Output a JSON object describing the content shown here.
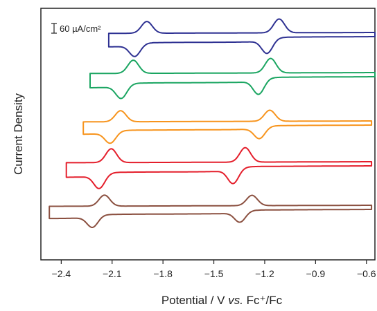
{
  "chart_data": {
    "type": "line",
    "title": "",
    "xlabel": "Potential / V vs. Fc⁺/Fc",
    "xlabel_parts": {
      "prefix": "Potential / V ",
      "italic": "vs.",
      "suffix": " Fc⁺/Fc"
    },
    "ylabel": "Current Density",
    "xlim": [
      -2.52,
      -0.55
    ],
    "x_ticks": [
      -2.4,
      -2.1,
      -1.8,
      -1.5,
      -1.2,
      -0.9,
      -0.6
    ],
    "x_tick_labels": [
      "−2.4",
      "−2.1",
      "−1.8",
      "−1.5",
      "−1.2",
      "−0.9",
      "−0.6"
    ],
    "y_ticks_visible": false,
    "scale_bar_label": "60 µA/cm²",
    "scale_bar_value": 60,
    "grid": false,
    "series": [
      {
        "color": "#2e3192",
        "x_start": -2.12,
        "x_end": -0.55,
        "e1": -1.93,
        "e2": -1.15,
        "amp1": 0.85,
        "amp2": 1.0,
        "sep": 0.07
      },
      {
        "color": "#1aa561",
        "x_start": -2.23,
        "x_end": -0.55,
        "e1": -2.01,
        "e2": -1.2,
        "amp1": 0.95,
        "amp2": 1.05,
        "sep": 0.07
      },
      {
        "color": "#f7941d",
        "x_start": -2.27,
        "x_end": -0.57,
        "e1": -2.08,
        "e2": -1.2,
        "amp1": 0.8,
        "amp2": 0.8,
        "sep": 0.06
      },
      {
        "color": "#e41e2b",
        "x_start": -2.37,
        "x_end": -0.57,
        "e1": -2.14,
        "e2": -1.35,
        "amp1": 1.0,
        "amp2": 1.05,
        "sep": 0.07
      },
      {
        "color": "#8b5040",
        "x_start": -2.47,
        "x_end": -0.57,
        "e1": -2.18,
        "e2": -1.31,
        "amp1": 0.8,
        "amp2": 0.75,
        "sep": 0.07
      }
    ]
  }
}
